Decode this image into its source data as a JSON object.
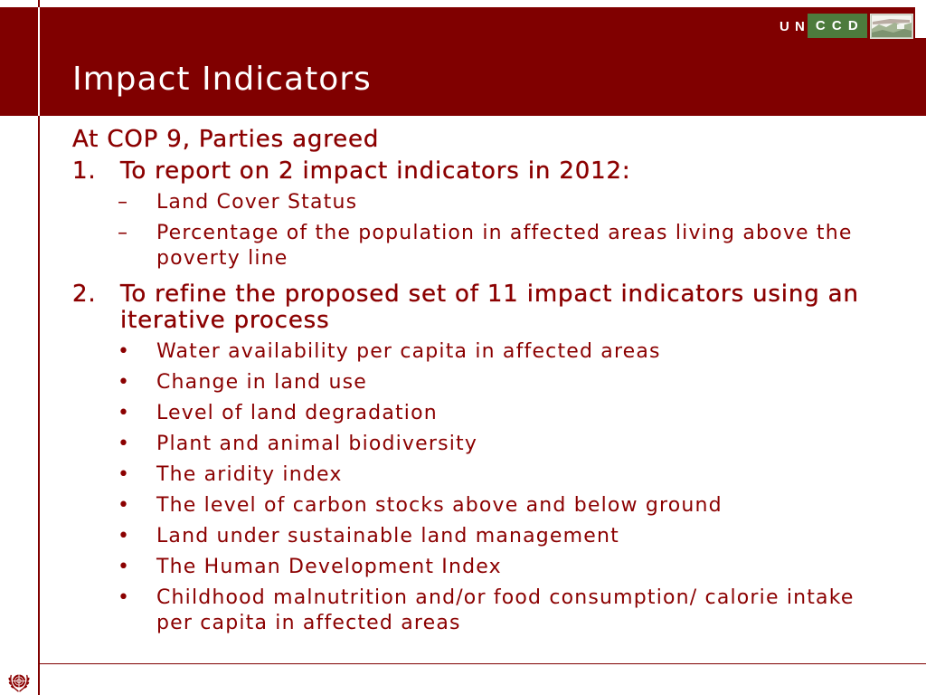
{
  "header": {
    "title": "Impact Indicators",
    "logo": {
      "text_un": "U N",
      "text_ccd": "C C D",
      "image_icon": "unccd-landscape-icon"
    }
  },
  "content": {
    "intro": "At COP 9, Parties agreed",
    "items": [
      {
        "number": "1.",
        "text": "To report on 2 impact indicators in 2012:",
        "subitems": [
          {
            "marker": "–",
            "text": "Land Cover Status"
          },
          {
            "marker": "–",
            "text": "Percentage of the population in affected areas living above the poverty line"
          }
        ]
      },
      {
        "number": "2.",
        "text": "To refine the proposed set of 11 impact indicators using an iterative process",
        "subitems": [
          {
            "marker": "•",
            "text": "Water availability per capita in affected areas"
          },
          {
            "marker": "•",
            "text": "Change in land use"
          },
          {
            "marker": "•",
            "text": "Level of land degradation"
          },
          {
            "marker": "•",
            "text": "Plant and animal biodiversity"
          },
          {
            "marker": "•",
            "text": "The aridity index"
          },
          {
            "marker": "•",
            "text": "The level of carbon stocks above and below ground"
          },
          {
            "marker": "•",
            "text": "Land under sustainable land management"
          },
          {
            "marker": "•",
            "text": "The Human Development Index"
          },
          {
            "marker": "•",
            "text": "Childhood malnutrition and/or food consumption/ calorie intake per capita in affected areas"
          }
        ]
      }
    ]
  },
  "footer": {
    "emblem_icon": "un-emblem-icon"
  },
  "colors": {
    "banner": "#800000",
    "text": "#8b0000",
    "rule": "#800000",
    "logo_green": "#4d7b3d"
  }
}
